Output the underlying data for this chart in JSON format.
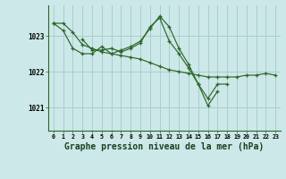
{
  "bg_color": "#cce8e8",
  "grid_color": "#aacece",
  "line_color": "#2d6629",
  "marker_color": "#2d6629",
  "xlabel": "Graphe pression niveau de la mer (hPa)",
  "xlabel_fontsize": 7.0,
  "xtick_labels": [
    "0",
    "1",
    "2",
    "3",
    "4",
    "5",
    "6",
    "7",
    "8",
    "9",
    "10",
    "11",
    "12",
    "13",
    "14",
    "15",
    "16",
    "17",
    "18",
    "19",
    "20",
    "21",
    "22",
    "23"
  ],
  "ytick_values": [
    1021,
    1022,
    1023
  ],
  "ylim": [
    1020.35,
    1023.85
  ],
  "xlim": [
    -0.5,
    23.5
  ],
  "series": [
    [
      1023.35,
      1023.35,
      1023.1,
      1022.75,
      1022.65,
      1022.55,
      1022.5,
      1022.45,
      1022.4,
      1022.35,
      1022.25,
      1022.15,
      1022.05,
      1022.0,
      1021.95,
      1021.9,
      1021.85,
      1021.85,
      1021.85,
      1021.85,
      1021.9,
      1021.9,
      1021.95,
      1021.9
    ],
    [
      1023.35,
      1023.15,
      1022.65,
      1022.5,
      1022.5,
      1022.7,
      1022.5,
      1022.6,
      1022.7,
      1022.85,
      1023.2,
      1023.55,
      1023.25,
      1022.65,
      1022.2,
      1021.65,
      1021.25,
      1021.65,
      1021.65,
      null,
      null,
      null,
      null,
      null
    ],
    [
      null,
      null,
      null,
      1022.9,
      1022.6,
      1022.6,
      1022.65,
      1022.55,
      1022.65,
      1022.8,
      1023.25,
      1023.5,
      1022.85,
      1022.5,
      1022.1,
      1021.65,
      1021.05,
      1021.45,
      null,
      null,
      null,
      null,
      null,
      null
    ]
  ]
}
